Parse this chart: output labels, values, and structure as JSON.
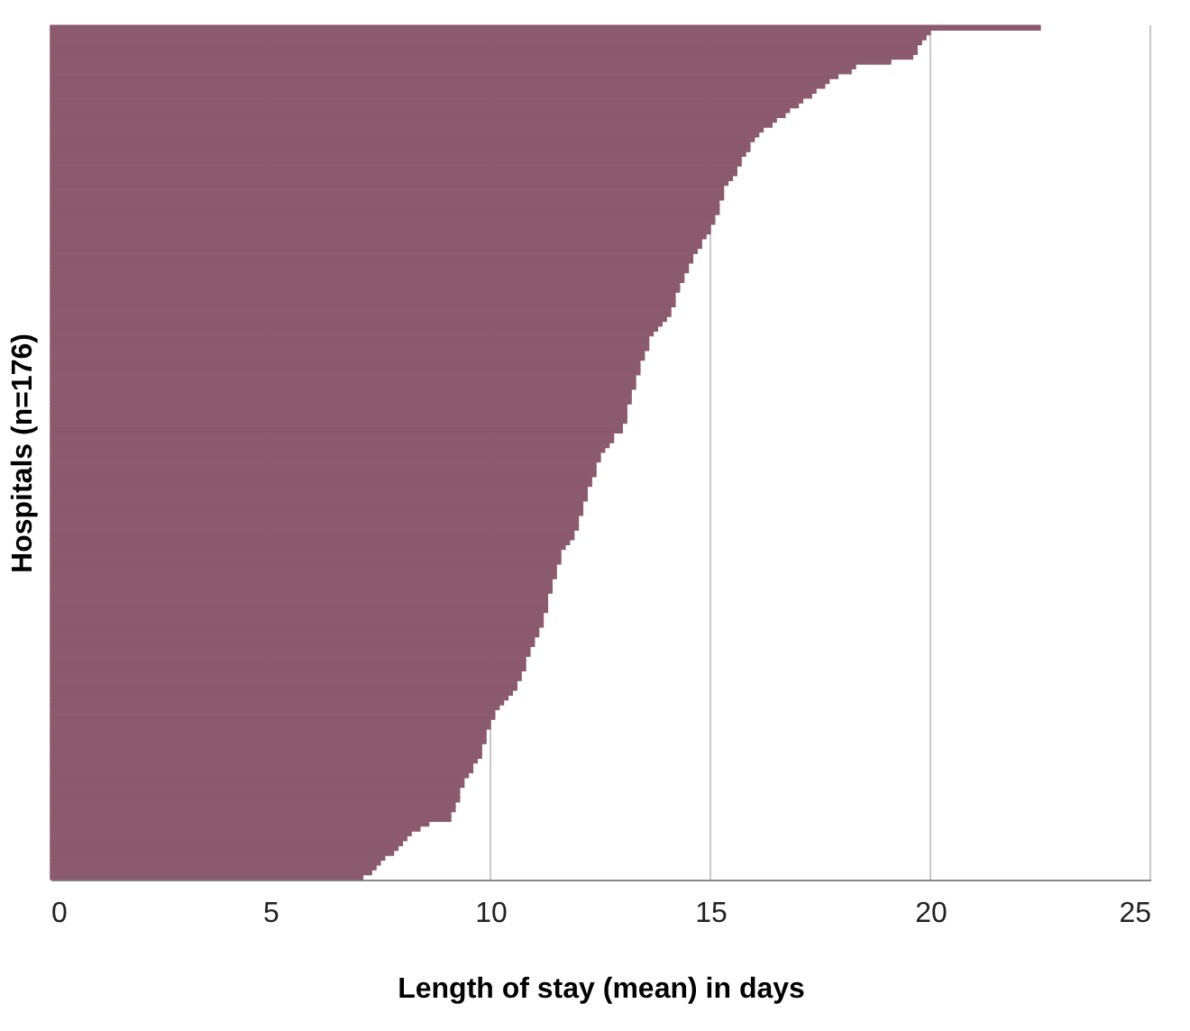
{
  "chart_data": {
    "type": "bar",
    "orientation": "horizontal",
    "xlabel": "Length of stay (mean) in days",
    "ylabel": "Hospitals (n=176)",
    "categories": [
      null,
      null,
      null,
      null,
      null,
      null,
      null,
      null,
      null,
      null,
      null,
      null,
      null,
      null,
      null,
      null,
      null,
      null,
      null,
      null,
      null,
      null,
      null,
      null,
      null,
      null,
      null,
      null,
      null,
      null,
      null,
      null,
      null,
      null,
      null,
      null,
      null,
      null,
      null,
      null,
      null,
      null,
      null,
      null,
      null,
      null,
      null,
      null,
      null,
      null,
      null,
      null,
      null,
      null,
      null,
      null,
      null,
      null,
      null,
      null,
      null,
      null,
      null,
      null,
      null,
      null,
      null,
      null,
      null,
      null,
      null,
      null,
      null,
      null,
      null,
      null,
      null,
      null,
      null,
      null,
      null,
      null,
      null,
      null,
      null,
      null,
      null,
      null,
      null,
      null,
      null,
      null,
      null,
      null,
      null,
      null,
      null,
      null,
      null,
      null,
      null,
      null,
      null,
      null,
      null,
      null,
      null,
      null,
      null,
      null,
      null,
      null,
      null,
      null,
      null,
      null,
      null,
      null,
      null,
      null,
      null,
      null,
      null,
      null,
      null,
      null,
      null,
      null,
      null,
      null,
      null,
      null,
      null,
      null,
      null,
      null,
      null,
      null,
      null,
      null,
      null,
      null,
      null,
      null,
      null,
      null,
      null,
      null,
      null,
      null,
      null,
      null,
      null,
      null,
      null,
      null,
      null,
      null,
      null,
      null,
      null,
      null,
      null,
      null,
      null,
      null,
      null,
      null,
      null,
      null,
      null,
      null,
      null,
      null,
      null,
      null
    ],
    "values": [
      22.5,
      20.0,
      19.9,
      19.8,
      19.7,
      19.7,
      19.6,
      19.1,
      18.3,
      18.2,
      17.9,
      17.7,
      17.6,
      17.4,
      17.3,
      17.1,
      17.0,
      16.8,
      16.7,
      16.5,
      16.4,
      16.2,
      16.1,
      16.0,
      15.9,
      15.9,
      15.8,
      15.7,
      15.7,
      15.6,
      15.6,
      15.5,
      15.4,
      15.3,
      15.3,
      15.3,
      15.2,
      15.2,
      15.2,
      15.1,
      15.1,
      15.0,
      15.0,
      14.9,
      14.8,
      14.8,
      14.7,
      14.6,
      14.6,
      14.5,
      14.5,
      14.4,
      14.4,
      14.3,
      14.3,
      14.2,
      14.2,
      14.2,
      14.1,
      14.1,
      14.0,
      13.9,
      13.8,
      13.7,
      13.6,
      13.6,
      13.6,
      13.5,
      13.5,
      13.4,
      13.4,
      13.4,
      13.3,
      13.3,
      13.3,
      13.2,
      13.2,
      13.2,
      13.1,
      13.1,
      13.1,
      13.1,
      13.0,
      13.0,
      12.8,
      12.8,
      12.7,
      12.6,
      12.5,
      12.5,
      12.4,
      12.4,
      12.4,
      12.3,
      12.3,
      12.2,
      12.2,
      12.2,
      12.1,
      12.1,
      12.1,
      12.0,
      12.0,
      12.0,
      11.9,
      11.9,
      11.8,
      11.7,
      11.6,
      11.6,
      11.6,
      11.5,
      11.5,
      11.5,
      11.4,
      11.4,
      11.4,
      11.3,
      11.3,
      11.3,
      11.3,
      11.2,
      11.2,
      11.2,
      11.1,
      11.1,
      11.0,
      11.0,
      10.9,
      10.9,
      10.8,
      10.8,
      10.8,
      10.7,
      10.7,
      10.6,
      10.6,
      10.5,
      10.4,
      10.3,
      10.2,
      10.1,
      10.1,
      10.0,
      10.0,
      9.9,
      9.9,
      9.9,
      9.8,
      9.8,
      9.8,
      9.7,
      9.6,
      9.6,
      9.5,
      9.4,
      9.4,
      9.3,
      9.3,
      9.3,
      9.2,
      9.2,
      9.1,
      9.1,
      8.6,
      8.4,
      8.2,
      8.1,
      8.0,
      7.9,
      7.8,
      7.6,
      7.5,
      7.4,
      7.3,
      7.1
    ],
    "color": "#8b5a6d",
    "xlim": [
      0,
      25
    ],
    "xticks": [
      0,
      5,
      10,
      15,
      20,
      25
    ],
    "grid": "x",
    "tick_labels": "x"
  }
}
